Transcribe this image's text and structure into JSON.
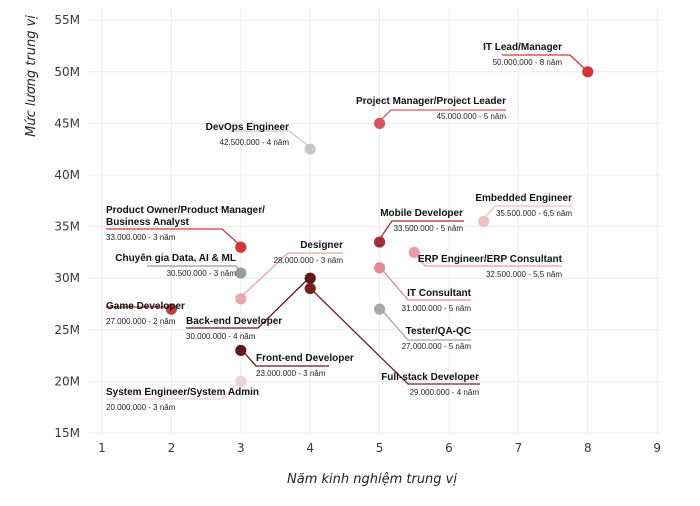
{
  "chart_data": {
    "type": "scatter",
    "xlabel": "Năm kinh nghiệm trung vị",
    "ylabel": "Mức lương trung vị",
    "xlim": [
      0.8,
      9
    ],
    "ylim": [
      14.2,
      55.5
    ],
    "x_ticks": [
      "1",
      "2",
      "3",
      "4",
      "5",
      "6",
      "7",
      "8",
      "9"
    ],
    "y_ticks": [
      "15M",
      "20M",
      "25M",
      "30M",
      "35M",
      "40M",
      "45M",
      "50M",
      "55M"
    ],
    "grid": true,
    "points": [
      {
        "name": "IT Lead/Manager",
        "x": 8,
        "y": 50,
        "detail": "50.000.000 - 8 năm",
        "color": "#d3373a"
      },
      {
        "name": "Project Manager/Project Leader",
        "x": 5,
        "y": 45,
        "detail": "45.000.000 - 5 năm",
        "color": "#d9545b"
      },
      {
        "name": "DevOps Engineer",
        "x": 4,
        "y": 42.5,
        "detail": "42.500.000 - 4 năm",
        "color": "#c8c8c8"
      },
      {
        "name": "Embedded Engineer",
        "x": 6.5,
        "y": 35.5,
        "detail": "35.500.000 - 6,5 năm",
        "color": "#ecc1c4"
      },
      {
        "name": "Product Owner/Product Manager/",
        "name2": "Business Analyst",
        "x": 3,
        "y": 33,
        "detail": "33.000.000 - 3 năm",
        "color": "#d3373a"
      },
      {
        "name": "Mobile Developer",
        "x": 5,
        "y": 33.5,
        "detail": "33.500.000 - 5 năm",
        "color": "#a82d2f"
      },
      {
        "name": "ERP Engineer/ERP Consultant",
        "x": 5.5,
        "y": 32.5,
        "detail": "32.500.000 - 5,5 năm",
        "color": "#e59fa5"
      },
      {
        "name": "Chuyên gia Data, AI & ML",
        "x": 3,
        "y": 30.5,
        "detail": "30.500.000 - 3 năm",
        "color": "#9a9a9a"
      },
      {
        "name": "IT Consultant",
        "x": 5,
        "y": 31,
        "detail": "31.000.000 - 5 năm",
        "color": "#e28a92"
      },
      {
        "name": "Designer",
        "x": 3,
        "y": 28,
        "detail": "28.000.000 - 3 năm",
        "color": "#e8a6aa"
      },
      {
        "name": "Back-end Developer",
        "x": 4,
        "y": 30,
        "detail": "30.000.000 - 4 năm",
        "color": "#5e1a1d"
      },
      {
        "name": "Game Developer",
        "x": 2,
        "y": 27,
        "detail": "27.000.000 - 2 năm",
        "color": "#c53a3d"
      },
      {
        "name": "Tester/QA-QC",
        "x": 5,
        "y": 27,
        "detail": "27.000.000 - 5 năm",
        "color": "#a6a6a6"
      },
      {
        "name": "Full-stack Developer",
        "x": 4,
        "y": 29,
        "detail": "29.000.000 - 4 năm",
        "color": "#7a2124"
      },
      {
        "name": "Front-end Developer",
        "x": 3,
        "y": 23,
        "detail": "23.000.000 - 3 năm",
        "color": "#611a1e"
      },
      {
        "name": "System Engineer/System Admin",
        "x": 3,
        "y": 20,
        "detail": "20.000.000 - 3 năm",
        "color": "#f2d1d3"
      }
    ]
  }
}
